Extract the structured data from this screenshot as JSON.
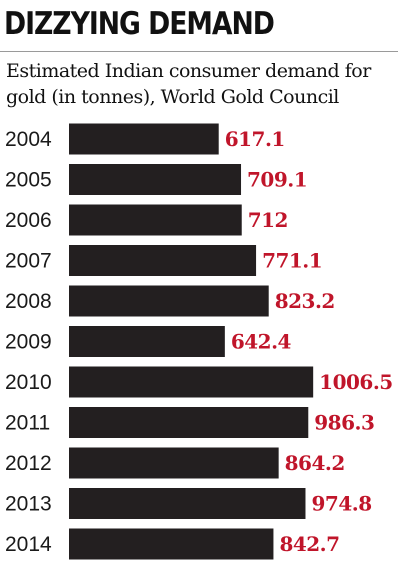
{
  "colors": {
    "bar": "#231f20",
    "value_text": "#c0152a",
    "text": "#111111"
  },
  "chart_data": {
    "type": "bar",
    "orientation": "horizontal",
    "title": "DIZZYING DEMAND",
    "subtitle_lines": [
      "Estimated Indian consumer demand for",
      "gold (in tonnes), World Gold Council"
    ],
    "categories": [
      "2004",
      "2005",
      "2006",
      "2007",
      "2008",
      "2009",
      "2010",
      "2011",
      "2012",
      "2013",
      "2014"
    ],
    "values": [
      617.1,
      709.1,
      712,
      771.1,
      823.2,
      642.4,
      1006.5,
      986.3,
      864.2,
      974.8,
      842.7
    ],
    "value_labels": [
      "617.1",
      "709.1",
      "712",
      "771.1",
      "823.2",
      "642.4",
      "1006.5",
      "986.3",
      "864.2",
      "974.8",
      "842.7"
    ],
    "xlabel": "",
    "ylabel": "",
    "grid": false,
    "legend": "none"
  }
}
